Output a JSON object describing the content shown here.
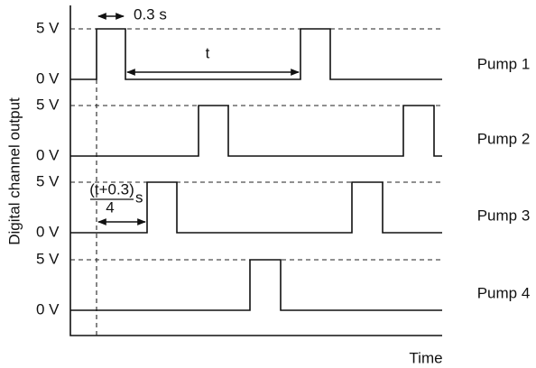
{
  "y_axis_label": "Digital channel output",
  "x_axis_label": "Time",
  "annotations": {
    "pulse_width": "0.3 s",
    "period": "t",
    "offset_numerator": "(t+0.3)",
    "offset_denominator": "4",
    "offset_unit": "s"
  },
  "channels": [
    {
      "label": "Pump 1",
      "high": "5 V",
      "low": "0 V"
    },
    {
      "label": "Pump 2",
      "high": "5 V",
      "low": "0 V"
    },
    {
      "label": "Pump 3",
      "high": "5 V",
      "low": "0 V"
    },
    {
      "label": "Pump 4",
      "high": "5 V",
      "low": "0 V"
    }
  ]
}
